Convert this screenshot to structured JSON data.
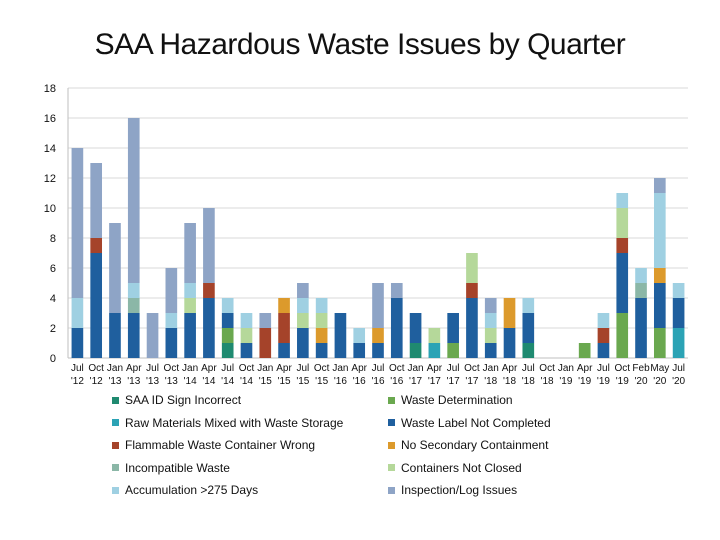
{
  "chart_data": {
    "type": "bar",
    "stacked": true,
    "title": "SAA Hazardous Waste Issues by Quarter",
    "xlabel": "",
    "ylabel": "",
    "ylim": [
      0,
      18
    ],
    "yticks": [
      0,
      2,
      4,
      6,
      8,
      10,
      12,
      14,
      16,
      18
    ],
    "grid": true,
    "legend_position": "bottom",
    "categories": [
      {
        "line1": "Jul",
        "line2": "'12"
      },
      {
        "line1": "Oct",
        "line2": "'12"
      },
      {
        "line1": "Jan",
        "line2": "'13"
      },
      {
        "line1": "Apr",
        "line2": "'13"
      },
      {
        "line1": "Jul",
        "line2": "'13"
      },
      {
        "line1": "Oct",
        "line2": "'13"
      },
      {
        "line1": "Jan",
        "line2": "'14"
      },
      {
        "line1": "Apr",
        "line2": "'14"
      },
      {
        "line1": "Jul",
        "line2": "'14"
      },
      {
        "line1": "Oct",
        "line2": "'14"
      },
      {
        "line1": "Jan",
        "line2": "'15"
      },
      {
        "line1": "Apr",
        "line2": "'15"
      },
      {
        "line1": "Jul",
        "line2": "'15"
      },
      {
        "line1": "Oct",
        "line2": "'15"
      },
      {
        "line1": "Jan",
        "line2": "'16"
      },
      {
        "line1": "Apr",
        "line2": "'16"
      },
      {
        "line1": "Jul",
        "line2": "'16"
      },
      {
        "line1": "Oct",
        "line2": "'16"
      },
      {
        "line1": "Jan",
        "line2": "'17"
      },
      {
        "line1": "Apr",
        "line2": "'17"
      },
      {
        "line1": "Jul",
        "line2": "'17"
      },
      {
        "line1": "Oct",
        "line2": "'17"
      },
      {
        "line1": "Jan",
        "line2": "'18"
      },
      {
        "line1": "Apr",
        "line2": "'18"
      },
      {
        "line1": "Jul",
        "line2": "'18"
      },
      {
        "line1": "Oct",
        "line2": "'18"
      },
      {
        "line1": "Jan",
        "line2": "'19"
      },
      {
        "line1": "Apr",
        "line2": "'19"
      },
      {
        "line1": "Jul",
        "line2": "'19"
      },
      {
        "line1": "Oct",
        "line2": "'19"
      },
      {
        "line1": "Feb",
        "line2": "'20"
      },
      {
        "line1": "May",
        "line2": "'20"
      },
      {
        "line1": "Jul",
        "line2": "'20"
      }
    ],
    "series": [
      {
        "name": "SAA ID Sign Incorrect",
        "color": "#1f8a70",
        "values": [
          0,
          0,
          0,
          0,
          0,
          0,
          0,
          0,
          1,
          0,
          0,
          0,
          0,
          0,
          0,
          0,
          0,
          0,
          1,
          0,
          0,
          0,
          0,
          0,
          1,
          0,
          0,
          0,
          0,
          0,
          0,
          0,
          0
        ]
      },
      {
        "name": "Waste Determination",
        "color": "#6aa84f",
        "values": [
          0,
          0,
          0,
          0,
          0,
          0,
          0,
          0,
          1,
          0,
          0,
          0,
          0,
          0,
          0,
          0,
          0,
          0,
          0,
          0,
          1,
          0,
          0,
          0,
          0,
          0,
          0,
          1,
          0,
          3,
          0,
          2,
          0
        ]
      },
      {
        "name": "Raw Materials Mixed with Waste Storage",
        "color": "#2ba3b5",
        "values": [
          0,
          0,
          0,
          0,
          0,
          0,
          0,
          0,
          0,
          0,
          0,
          0,
          0,
          0,
          0,
          0,
          0,
          0,
          0,
          1,
          0,
          0,
          0,
          0,
          0,
          0,
          0,
          0,
          0,
          0,
          0,
          0,
          2
        ]
      },
      {
        "name": "Waste Label Not Completed",
        "color": "#1f5f9e",
        "values": [
          2,
          7,
          3,
          3,
          0,
          2,
          3,
          4,
          1,
          1,
          0,
          1,
          2,
          1,
          3,
          1,
          1,
          4,
          2,
          0,
          2,
          4,
          1,
          2,
          2,
          0,
          0,
          0,
          1,
          4,
          4,
          3,
          2
        ]
      },
      {
        "name": "Flammable Waste Container Wrong",
        "color": "#a5432a",
        "values": [
          0,
          1,
          0,
          0,
          0,
          0,
          0,
          1,
          0,
          0,
          2,
          2,
          0,
          0,
          0,
          0,
          0,
          0,
          0,
          0,
          0,
          1,
          0,
          0,
          0,
          0,
          0,
          0,
          1,
          1,
          0,
          0,
          0
        ]
      },
      {
        "name": "No Secondary Containment",
        "color": "#dc9a2c",
        "values": [
          0,
          0,
          0,
          0,
          0,
          0,
          0,
          0,
          0,
          0,
          0,
          1,
          0,
          1,
          0,
          0,
          1,
          0,
          0,
          0,
          0,
          0,
          0,
          2,
          0,
          0,
          0,
          0,
          0,
          0,
          0,
          1,
          0
        ]
      },
      {
        "name": "Incompatible Waste",
        "color": "#8bb7a7",
        "values": [
          0,
          0,
          0,
          1,
          0,
          0,
          0,
          0,
          0,
          0,
          0,
          0,
          0,
          0,
          0,
          0,
          0,
          0,
          0,
          0,
          0,
          0,
          0,
          0,
          0,
          0,
          0,
          0,
          0,
          0,
          1,
          0,
          0
        ]
      },
      {
        "name": "Containers Not Closed",
        "color": "#b5d89a",
        "values": [
          0,
          0,
          0,
          0,
          0,
          0,
          1,
          0,
          0,
          1,
          0,
          0,
          1,
          1,
          0,
          0,
          0,
          0,
          0,
          1,
          0,
          2,
          1,
          0,
          0,
          0,
          0,
          0,
          0,
          2,
          0,
          0,
          0
        ]
      },
      {
        "name": "Accumulation >275 Days",
        "color": "#9fd0e2",
        "values": [
          2,
          0,
          0,
          1,
          0,
          1,
          1,
          0,
          1,
          1,
          0,
          0,
          1,
          1,
          0,
          1,
          0,
          0,
          0,
          0,
          0,
          0,
          1,
          0,
          1,
          0,
          0,
          0,
          1,
          1,
          1,
          5,
          1
        ]
      },
      {
        "name": "Inspection/Log Issues",
        "color": "#8ea4c6",
        "values": [
          10,
          5,
          6,
          11,
          3,
          3,
          4,
          5,
          0,
          0,
          1,
          0,
          1,
          0,
          0,
          0,
          3,
          1,
          0,
          0,
          0,
          0,
          1,
          0,
          0,
          0,
          0,
          0,
          0,
          0,
          0,
          1,
          0
        ]
      }
    ],
    "legend_order": [
      "SAA ID Sign Incorrect",
      "Waste Determination",
      "Raw Materials Mixed with Waste Storage",
      "Waste Label Not Completed",
      "Flammable Waste Container Wrong",
      "No Secondary Containment",
      "Incompatible Waste",
      "Containers Not Closed",
      "Accumulation >275 Days",
      "Inspection/Log Issues"
    ]
  }
}
